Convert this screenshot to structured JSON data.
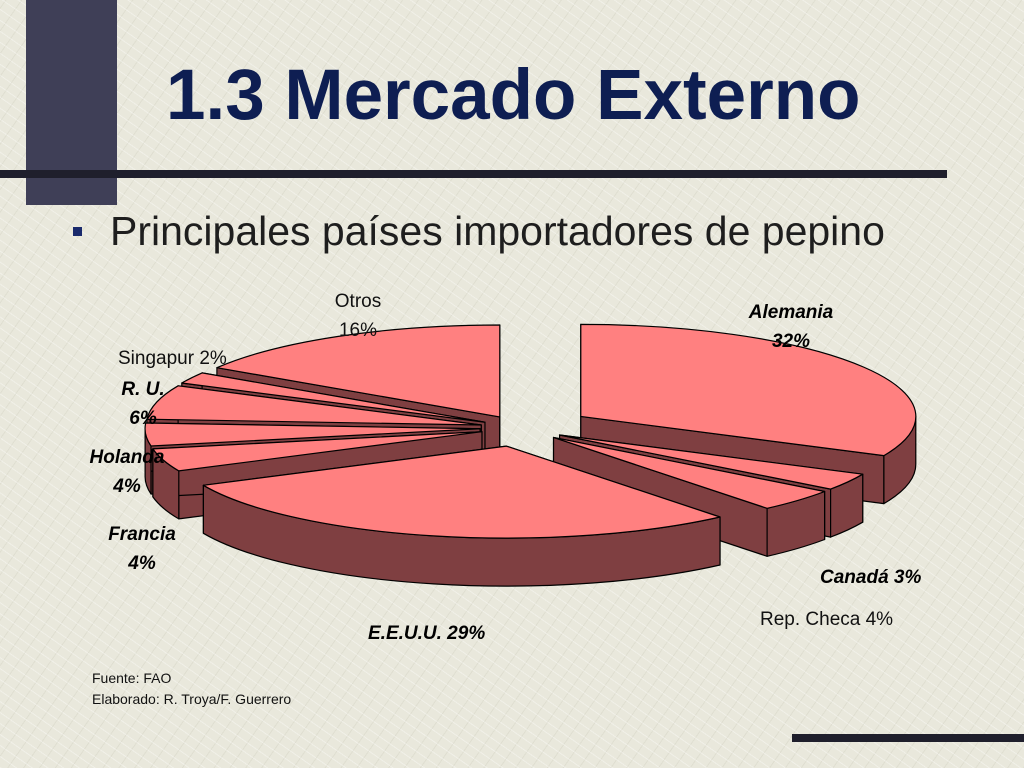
{
  "slide": {
    "title": "1.3 Mercado Externo",
    "subtitle": "Principales países importadores de pepino"
  },
  "chart_data": {
    "type": "pie",
    "variant": "3d-exploded",
    "slices": [
      {
        "name": "Alemania",
        "value": 32,
        "label_text": "32%"
      },
      {
        "name": "Canadá",
        "value": 3,
        "label_text": "Canadá 3%"
      },
      {
        "name": "Rep. Checa",
        "value": 4,
        "label_text": "Rep. Checa 4%"
      },
      {
        "name": "E.E.U.U.",
        "value": 29,
        "label_text": "E.E.U.U. 29%"
      },
      {
        "name": "Francia",
        "value": 4,
        "label_text": "4%"
      },
      {
        "name": "Holanda",
        "value": 4,
        "label_text": "4%"
      },
      {
        "name": "R. U.",
        "value": 6,
        "label_text": "6%"
      },
      {
        "name": "Singapur",
        "value": 2,
        "label_text": "Singapur 2%"
      },
      {
        "name": "Otros",
        "value": 16,
        "label_text": "16%"
      }
    ],
    "colors": {
      "top": "#ff8080",
      "side": "#7f3f41",
      "edge": "#000000"
    }
  },
  "source": {
    "line1": "Fuente: FAO",
    "line2": "Elaborado: R. Troya/F. Guerrero"
  }
}
